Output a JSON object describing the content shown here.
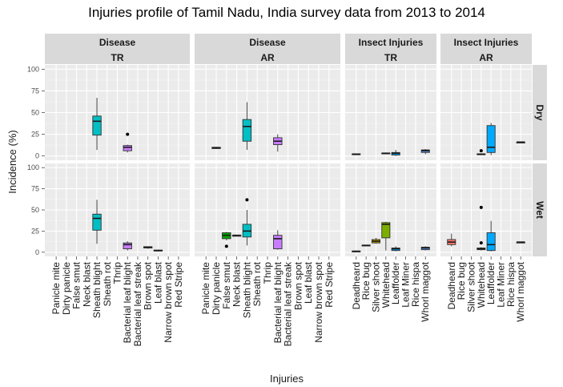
{
  "chart_data": {
    "type": "boxplot",
    "title": "Injuries profile of Tamil Nadu, India survey data from 2013 to 2014",
    "xlabel": "Injuries",
    "ylabel": "Incidence (%)",
    "ylim": [
      0,
      100
    ],
    "yticks": [
      0,
      25,
      50,
      75,
      100
    ],
    "grid": true,
    "facet_columns": [
      {
        "id": "disease_tr",
        "group": "Disease",
        "sub": "TR",
        "categories": [
          "Panicle mite",
          "Dirty panicle",
          "False smut",
          "Neck blast",
          "Sheath blight",
          "Sheath rot",
          "Thrip",
          "Bacterial leaf blight",
          "Bacterial leaf streak",
          "Brown spot",
          "Leaf blast",
          "Narrow brown spot",
          "Red Stripe"
        ]
      },
      {
        "id": "disease_ar",
        "group": "Disease",
        "sub": "AR",
        "categories": [
          "Panicle mite",
          "Dirty panicle",
          "False smut",
          "Neck blast",
          "Sheath blight",
          "Sheath rot",
          "Thrip",
          "Bacterial leaf blight",
          "Bacterial leaf streak",
          "Brown spot",
          "Leaf blast",
          "Narrow brown spot",
          "Red Stripe"
        ]
      },
      {
        "id": "insect_tr",
        "group": "Insect Injuries",
        "sub": "TR",
        "categories": [
          "Deadheard",
          "Rice bug",
          "Silver shoot",
          "Whitehead",
          "Leaffolder",
          "Leaf Miner",
          "Rice hispa",
          "Whorl maggot"
        ]
      },
      {
        "id": "insect_ar",
        "group": "Insect Injuries",
        "sub": "AR",
        "categories": [
          "Deadheard",
          "Rice bug",
          "Silver shoot",
          "Whitehead",
          "Leaffolder",
          "Leaf Miner",
          "Rice hispa",
          "Whorl maggot"
        ]
      }
    ],
    "facet_rows": [
      {
        "id": "dry",
        "label": "Dry"
      },
      {
        "id": "wet",
        "label": "Wet"
      }
    ],
    "category_colors": {
      "Dirty panicle": "#F8766D",
      "False smut": "#00A600",
      "Neck blast": "#44AA55",
      "Sheath blight": "#00BFC4",
      "Bacterial leaf blight": "#C77CFF",
      "Brown spot": "#E58700",
      "Leaf blast": "#B79F00",
      "Deadheard": "#F8766D",
      "Rice bug": "#C49A00",
      "Silver shoot": "#B8A000",
      "Whitehead": "#7CAE00",
      "Leaffolder": "#00A9FF",
      "Whorl maggot": "#619CFF"
    },
    "boxes": [
      {
        "col": "disease_tr",
        "row": "dry",
        "category": "Sheath blight",
        "min": 7,
        "q1": 24,
        "median": 40,
        "q3": 46,
        "max": 67,
        "outliers": []
      },
      {
        "col": "disease_tr",
        "row": "dry",
        "category": "Bacterial leaf blight",
        "min": 4,
        "q1": 6,
        "median": 10,
        "q3": 12,
        "max": 13,
        "outliers": [
          25
        ]
      },
      {
        "col": "disease_ar",
        "row": "dry",
        "category": "Dirty panicle",
        "min": 8,
        "q1": 8.5,
        "median": 9.5,
        "q3": 10,
        "max": 10.5,
        "outliers": []
      },
      {
        "col": "disease_ar",
        "row": "dry",
        "category": "Sheath blight",
        "min": 7,
        "q1": 17,
        "median": 34,
        "q3": 42,
        "max": 62,
        "outliers": []
      },
      {
        "col": "disease_ar",
        "row": "dry",
        "category": "Bacterial leaf blight",
        "min": 5,
        "q1": 13,
        "median": 17,
        "q3": 21,
        "max": 25,
        "outliers": []
      },
      {
        "col": "insect_tr",
        "row": "dry",
        "category": "Deadheard",
        "min": 1,
        "q1": 1.5,
        "median": 2,
        "q3": 2.5,
        "max": 3,
        "outliers": []
      },
      {
        "col": "insect_tr",
        "row": "dry",
        "category": "Whitehead",
        "min": 2,
        "q1": 2.5,
        "median": 3,
        "q3": 3.5,
        "max": 4,
        "outliers": []
      },
      {
        "col": "insect_tr",
        "row": "dry",
        "category": "Leaffolder",
        "min": 0,
        "q1": 1,
        "median": 3,
        "q3": 4,
        "max": 7,
        "outliers": []
      },
      {
        "col": "insect_tr",
        "row": "dry",
        "category": "Whorl maggot",
        "min": 2,
        "q1": 4,
        "median": 6,
        "q3": 7,
        "max": 8,
        "outliers": []
      },
      {
        "col": "insect_ar",
        "row": "dry",
        "category": "Whitehead",
        "min": 1,
        "q1": 1.5,
        "median": 2,
        "q3": 2.5,
        "max": 3,
        "outliers": [
          6
        ]
      },
      {
        "col": "insect_ar",
        "row": "dry",
        "category": "Leaffolder",
        "min": 1,
        "q1": 4,
        "median": 10,
        "q3": 35,
        "max": 38,
        "outliers": []
      },
      {
        "col": "insect_ar",
        "row": "dry",
        "category": "Whorl maggot",
        "min": 16,
        "q1": 16,
        "median": 16,
        "q3": 16,
        "max": 16,
        "outliers": []
      },
      {
        "col": "disease_tr",
        "row": "wet",
        "category": "Sheath blight",
        "min": 10,
        "q1": 26,
        "median": 40,
        "q3": 45,
        "max": 62,
        "outliers": []
      },
      {
        "col": "disease_tr",
        "row": "wet",
        "category": "Bacterial leaf blight",
        "min": 2,
        "q1": 4,
        "median": 9,
        "q3": 11,
        "max": 13,
        "outliers": []
      },
      {
        "col": "disease_tr",
        "row": "wet",
        "category": "Brown spot",
        "min": 4,
        "q1": 5,
        "median": 6,
        "q3": 6.5,
        "max": 7,
        "outliers": []
      },
      {
        "col": "disease_tr",
        "row": "wet",
        "category": "Leaf blast",
        "min": 1,
        "q1": 1.5,
        "median": 2,
        "q3": 2.5,
        "max": 3,
        "outliers": []
      },
      {
        "col": "disease_ar",
        "row": "wet",
        "category": "False smut",
        "min": 14,
        "q1": 16,
        "median": 20,
        "q3": 23,
        "max": 24,
        "outliers": [
          7
        ]
      },
      {
        "col": "disease_ar",
        "row": "wet",
        "category": "Neck blast",
        "min": 19,
        "q1": 19,
        "median": 20,
        "q3": 20,
        "max": 20,
        "outliers": []
      },
      {
        "col": "disease_ar",
        "row": "wet",
        "category": "Sheath blight",
        "min": 8,
        "q1": 18,
        "median": 25,
        "q3": 33,
        "max": 50,
        "outliers": [
          62
        ]
      },
      {
        "col": "disease_ar",
        "row": "wet",
        "category": "Bacterial leaf blight",
        "min": 3,
        "q1": 4,
        "median": 16,
        "q3": 20,
        "max": 26,
        "outliers": []
      },
      {
        "col": "insect_tr",
        "row": "wet",
        "category": "Deadheard",
        "min": 0,
        "q1": 0.5,
        "median": 1,
        "q3": 1.5,
        "max": 2,
        "outliers": []
      },
      {
        "col": "insect_tr",
        "row": "wet",
        "category": "Rice bug",
        "min": 7,
        "q1": 7.5,
        "median": 8,
        "q3": 8.5,
        "max": 9,
        "outliers": []
      },
      {
        "col": "insect_tr",
        "row": "wet",
        "category": "Silver shoot",
        "min": 10,
        "q1": 11,
        "median": 13,
        "q3": 15,
        "max": 17,
        "outliers": []
      },
      {
        "col": "insect_tr",
        "row": "wet",
        "category": "Whitehead",
        "min": 2,
        "q1": 17,
        "median": 33,
        "q3": 35,
        "max": 36,
        "outliers": []
      },
      {
        "col": "insect_tr",
        "row": "wet",
        "category": "Leaffolder",
        "min": 1,
        "q1": 2,
        "median": 4,
        "q3": 5,
        "max": 7,
        "outliers": []
      },
      {
        "col": "insect_tr",
        "row": "wet",
        "category": "Whorl maggot",
        "min": 2,
        "q1": 3,
        "median": 5,
        "q3": 6,
        "max": 7,
        "outliers": []
      },
      {
        "col": "insect_ar",
        "row": "wet",
        "category": "Deadheard",
        "min": 7,
        "q1": 9,
        "median": 12,
        "q3": 15,
        "max": 22,
        "outliers": []
      },
      {
        "col": "insect_ar",
        "row": "wet",
        "category": "Whitehead",
        "min": 2,
        "q1": 3,
        "median": 4,
        "q3": 5,
        "max": 6,
        "outliers": [
          11,
          53
        ]
      },
      {
        "col": "insect_ar",
        "row": "wet",
        "category": "Leaffolder",
        "min": 1,
        "q1": 2,
        "median": 9,
        "q3": 23,
        "max": 37,
        "outliers": []
      },
      {
        "col": "insect_ar",
        "row": "wet",
        "category": "Whorl maggot",
        "min": 12,
        "q1": 12,
        "median": 12,
        "q3": 12,
        "max": 12,
        "outliers": []
      }
    ]
  }
}
